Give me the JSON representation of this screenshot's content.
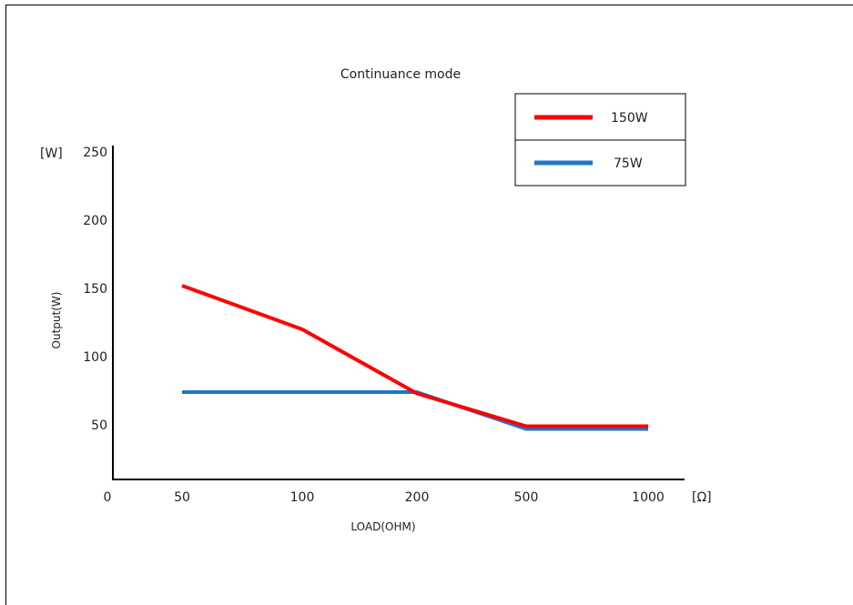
{
  "chart_data": {
    "type": "line",
    "title": "Continuance mode",
    "xlabel": "LOAD(OHM)",
    "ylabel": "Output(W)",
    "x_unit": "[Ω]",
    "y_unit": "[W]",
    "x_scale": "categorical",
    "categories": [
      "0",
      "50",
      "100",
      "200",
      "500",
      "1000"
    ],
    "y_ticks": [
      "250",
      "200",
      "150",
      "100",
      "50"
    ],
    "ylim": [
      10,
      260
    ],
    "grid": false,
    "legend_position": "top-right",
    "series": [
      {
        "name": "150W",
        "color": "#ff0000",
        "points": [
          [
            50,
            152
          ],
          [
            100,
            120
          ],
          [
            200,
            73
          ],
          [
            500,
            49
          ],
          [
            1000,
            49
          ]
        ]
      },
      {
        "name": "75W",
        "color": "#1f77c8",
        "points": [
          [
            50,
            74
          ],
          [
            100,
            74
          ],
          [
            200,
            74
          ],
          [
            500,
            47
          ],
          [
            1000,
            47
          ]
        ]
      }
    ]
  }
}
